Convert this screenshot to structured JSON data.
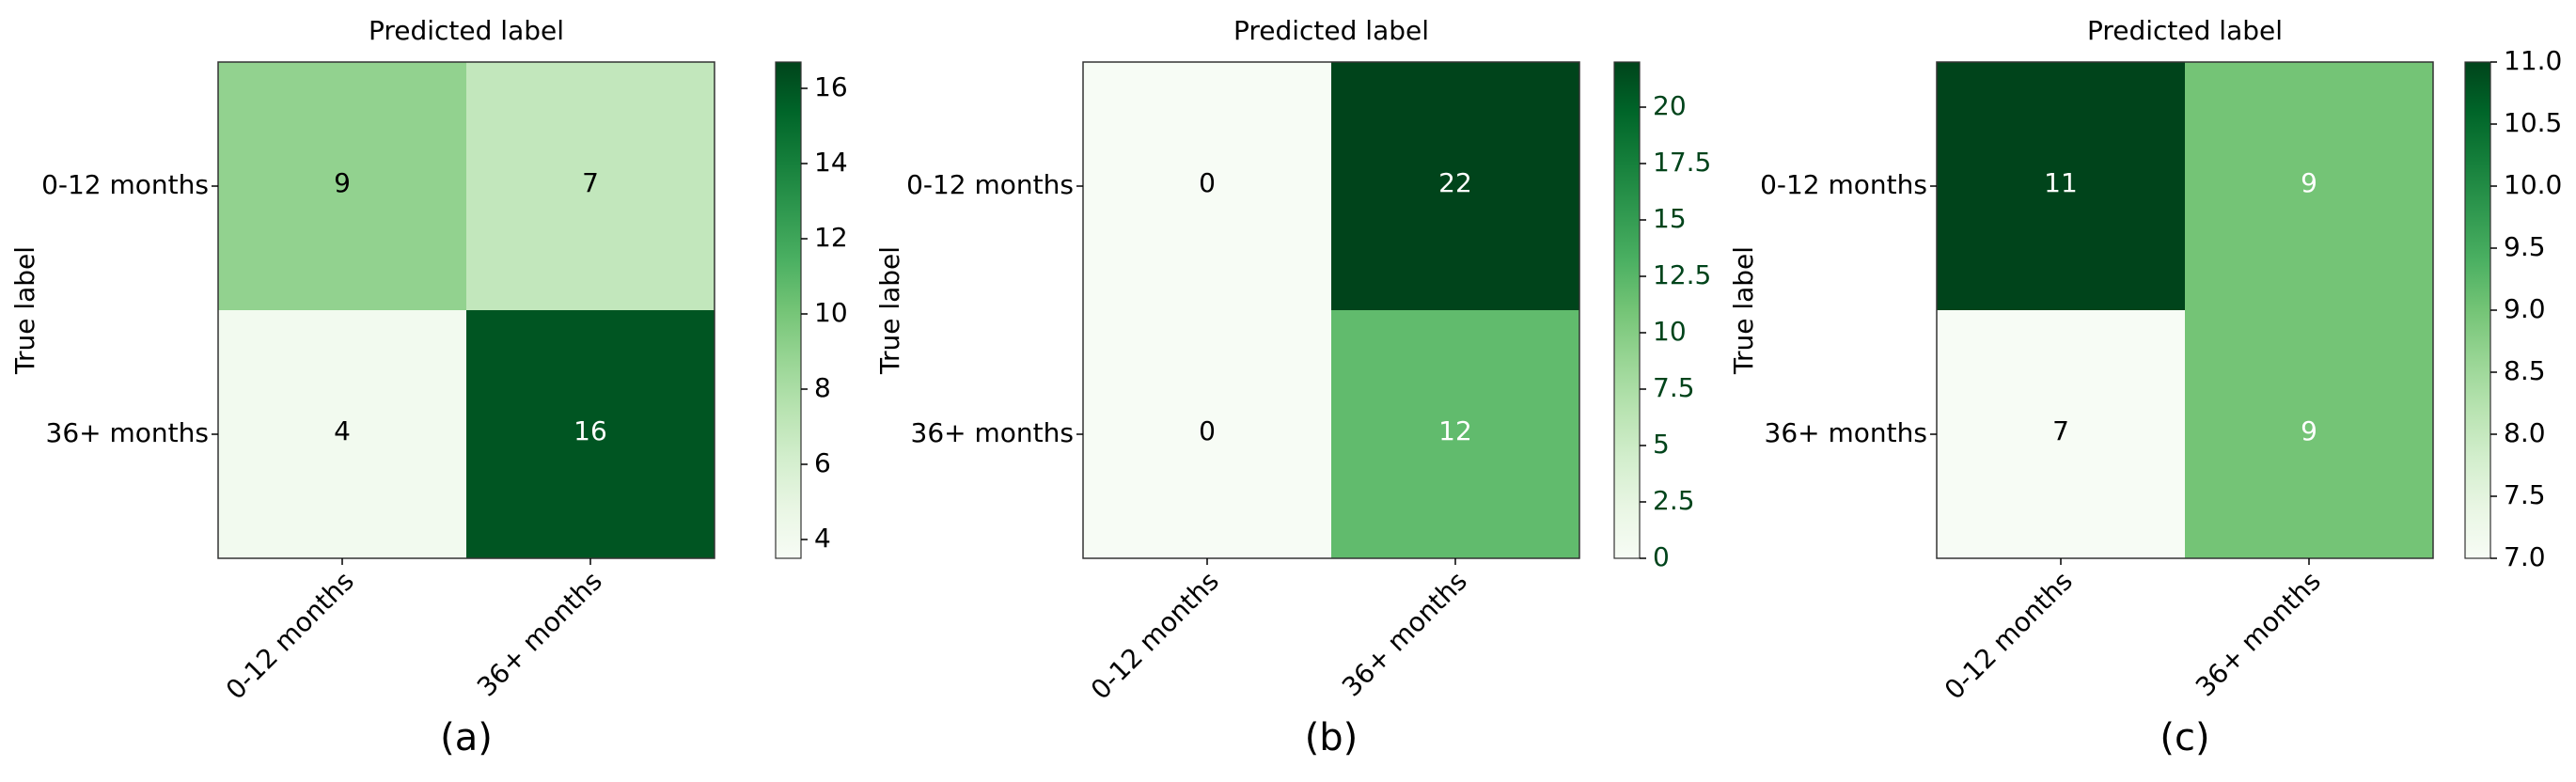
{
  "chart_data": [
    {
      "type": "heatmap",
      "panel_label": "(a)",
      "title": "Predicted label",
      "xlabel": "",
      "ylabel": "True label",
      "x_categories": [
        "0-12 months",
        "36+ months"
      ],
      "y_categories": [
        "0-12 months",
        "36+ months"
      ],
      "values": [
        [
          9,
          7
        ],
        [
          4,
          16
        ]
      ],
      "colorbar": {
        "min": 3.5,
        "max": 16.7,
        "ticks": [
          "4",
          "6",
          "8",
          "10",
          "12",
          "14",
          "16"
        ]
      }
    },
    {
      "type": "heatmap",
      "panel_label": "(b)",
      "title": "Predicted label",
      "xlabel": "",
      "ylabel": "True label",
      "x_categories": [
        "0-12 months",
        "36+ months"
      ],
      "y_categories": [
        "0-12 months",
        "36+ months"
      ],
      "values": [
        [
          0,
          22
        ],
        [
          0,
          12
        ]
      ],
      "colorbar": {
        "min": 0,
        "max": 22,
        "ticks": [
          "0",
          "2.5",
          "5",
          "7.5",
          "10",
          "12.5",
          "15",
          "17.5",
          "20"
        ]
      }
    },
    {
      "type": "heatmap",
      "panel_label": "(c)",
      "title": "Predicted label",
      "xlabel": "",
      "ylabel": "True label",
      "x_categories": [
        "0-12 months",
        "36+ months"
      ],
      "y_categories": [
        "0-12 months",
        "36+ months"
      ],
      "values": [
        [
          11,
          9
        ],
        [
          7,
          9
        ]
      ],
      "colorbar": {
        "min": 7.0,
        "max": 11.0,
        "ticks": [
          "7.0",
          "7.5",
          "8.0",
          "8.5",
          "9.0",
          "9.5",
          "10.0",
          "10.5",
          "11.0"
        ]
      }
    }
  ],
  "colormap": "Greens",
  "colors": {
    "low": "#f7fcf5",
    "high": "#00441b",
    "frame": "#333333",
    "text_dark": "#000000",
    "text_light": "#ffffff"
  }
}
